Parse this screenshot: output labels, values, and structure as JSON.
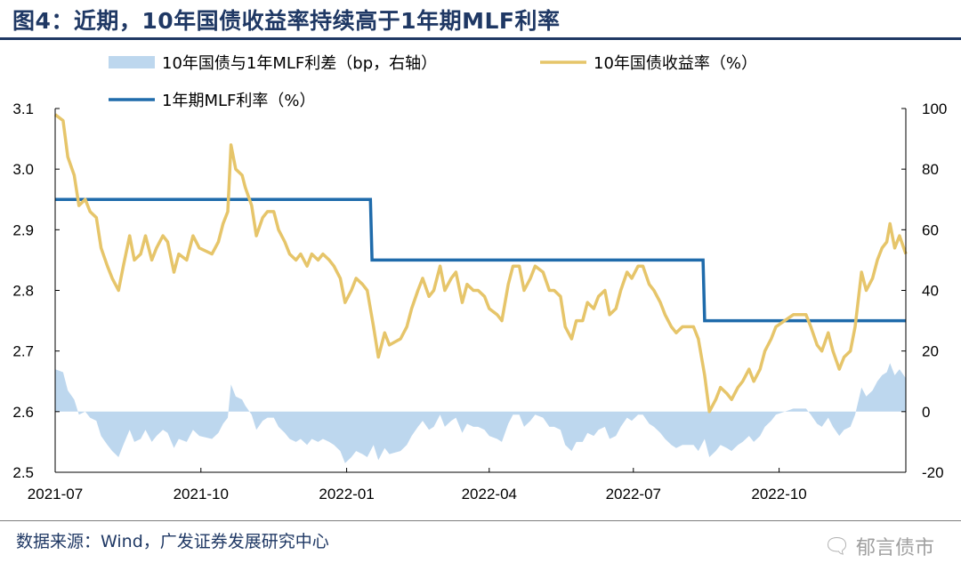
{
  "title": "图4：近期，10年国债收益率持续高于1年期MLF利率",
  "source": "数据来源：Wind，广发证券发展研究中心",
  "watermark": "郁言债市",
  "colors": {
    "spread": "#bdd7ee",
    "yield10y": "#e6c56a",
    "mlf": "#1f6bab",
    "title": "#1f3864"
  },
  "chart_data": {
    "type": "line",
    "legend": [
      {
        "key": "spread",
        "label": "10年国债与1年MLF利差（bp，右轴）"
      },
      {
        "key": "yield10y",
        "label": "10年国债收益率（%）"
      },
      {
        "key": "mlf",
        "label": "1年期MLF利率（%）"
      }
    ],
    "x_range": [
      "2021-07-01",
      "2022-12-20"
    ],
    "x_ticks": [
      "2021-07",
      "2021-10",
      "2022-01",
      "2022-04",
      "2022-07",
      "2022-10"
    ],
    "y_left": {
      "range": [
        2.5,
        3.1
      ],
      "ticks": [
        "2.5",
        "2.6",
        "2.7",
        "2.8",
        "2.9",
        "3.0",
        "3.1"
      ]
    },
    "y_right": {
      "range": [
        -20,
        100
      ],
      "ticks": [
        "-20",
        "0",
        "20",
        "40",
        "60",
        "80",
        "100"
      ]
    },
    "mlf_rate": [
      {
        "from": "2021-07-01",
        "to": "2022-01-16",
        "value": 2.95
      },
      {
        "from": "2022-01-17",
        "to": "2022-08-14",
        "value": 2.85
      },
      {
        "from": "2022-08-15",
        "to": "2022-12-20",
        "value": 2.75
      }
    ],
    "yield10y": [
      [
        "2021-07-01",
        3.09
      ],
      [
        "2021-07-06",
        3.08
      ],
      [
        "2021-07-09",
        3.02
      ],
      [
        "2021-07-13",
        2.99
      ],
      [
        "2021-07-16",
        2.94
      ],
      [
        "2021-07-20",
        2.95
      ],
      [
        "2021-07-23",
        2.93
      ],
      [
        "2021-07-27",
        2.92
      ],
      [
        "2021-07-30",
        2.87
      ],
      [
        "2021-08-03",
        2.84
      ],
      [
        "2021-08-06",
        2.82
      ],
      [
        "2021-08-10",
        2.8
      ],
      [
        "2021-08-13",
        2.84
      ],
      [
        "2021-08-17",
        2.89
      ],
      [
        "2021-08-20",
        2.85
      ],
      [
        "2021-08-24",
        2.86
      ],
      [
        "2021-08-27",
        2.89
      ],
      [
        "2021-08-31",
        2.85
      ],
      [
        "2021-09-03",
        2.87
      ],
      [
        "2021-09-07",
        2.89
      ],
      [
        "2021-09-10",
        2.88
      ],
      [
        "2021-09-14",
        2.83
      ],
      [
        "2021-09-17",
        2.86
      ],
      [
        "2021-09-22",
        2.85
      ],
      [
        "2021-09-26",
        2.89
      ],
      [
        "2021-09-30",
        2.87
      ],
      [
        "2021-10-08",
        2.86
      ],
      [
        "2021-10-12",
        2.88
      ],
      [
        "2021-10-15",
        2.91
      ],
      [
        "2021-10-18",
        2.93
      ],
      [
        "2021-10-20",
        3.04
      ],
      [
        "2021-10-23",
        3.0
      ],
      [
        "2021-10-27",
        2.99
      ],
      [
        "2021-10-29",
        2.97
      ],
      [
        "2021-11-02",
        2.94
      ],
      [
        "2021-11-05",
        2.89
      ],
      [
        "2021-11-09",
        2.92
      ],
      [
        "2021-11-12",
        2.93
      ],
      [
        "2021-11-16",
        2.93
      ],
      [
        "2021-11-19",
        2.9
      ],
      [
        "2021-11-23",
        2.88
      ],
      [
        "2021-11-26",
        2.86
      ],
      [
        "2021-11-30",
        2.85
      ],
      [
        "2021-12-03",
        2.86
      ],
      [
        "2021-12-07",
        2.84
      ],
      [
        "2021-12-10",
        2.86
      ],
      [
        "2021-12-14",
        2.85
      ],
      [
        "2021-12-17",
        2.86
      ],
      [
        "2021-12-21",
        2.85
      ],
      [
        "2021-12-24",
        2.84
      ],
      [
        "2021-12-28",
        2.82
      ],
      [
        "2021-12-31",
        2.78
      ],
      [
        "2022-01-04",
        2.8
      ],
      [
        "2022-01-07",
        2.82
      ],
      [
        "2022-01-11",
        2.81
      ],
      [
        "2022-01-14",
        2.8
      ],
      [
        "2022-01-18",
        2.74
      ],
      [
        "2022-01-21",
        2.69
      ],
      [
        "2022-01-25",
        2.73
      ],
      [
        "2022-01-28",
        2.71
      ],
      [
        "2022-02-04",
        2.72
      ],
      [
        "2022-02-08",
        2.74
      ],
      [
        "2022-02-11",
        2.77
      ],
      [
        "2022-02-15",
        2.8
      ],
      [
        "2022-02-18",
        2.82
      ],
      [
        "2022-02-22",
        2.79
      ],
      [
        "2022-02-25",
        2.8
      ],
      [
        "2022-03-01",
        2.84
      ],
      [
        "2022-03-04",
        2.8
      ],
      [
        "2022-03-08",
        2.82
      ],
      [
        "2022-03-11",
        2.83
      ],
      [
        "2022-03-15",
        2.78
      ],
      [
        "2022-03-18",
        2.81
      ],
      [
        "2022-03-22",
        2.8
      ],
      [
        "2022-03-25",
        2.8
      ],
      [
        "2022-03-29",
        2.79
      ],
      [
        "2022-04-01",
        2.77
      ],
      [
        "2022-04-06",
        2.76
      ],
      [
        "2022-04-09",
        2.75
      ],
      [
        "2022-04-13",
        2.81
      ],
      [
        "2022-04-16",
        2.84
      ],
      [
        "2022-04-20",
        2.84
      ],
      [
        "2022-04-23",
        2.8
      ],
      [
        "2022-04-27",
        2.82
      ],
      [
        "2022-04-30",
        2.84
      ],
      [
        "2022-05-05",
        2.83
      ],
      [
        "2022-05-09",
        2.8
      ],
      [
        "2022-05-12",
        2.8
      ],
      [
        "2022-05-16",
        2.79
      ],
      [
        "2022-05-19",
        2.74
      ],
      [
        "2022-05-23",
        2.72
      ],
      [
        "2022-05-26",
        2.75
      ],
      [
        "2022-05-30",
        2.75
      ],
      [
        "2022-06-02",
        2.78
      ],
      [
        "2022-06-06",
        2.77
      ],
      [
        "2022-06-09",
        2.79
      ],
      [
        "2022-06-13",
        2.8
      ],
      [
        "2022-06-16",
        2.76
      ],
      [
        "2022-06-20",
        2.77
      ],
      [
        "2022-06-23",
        2.8
      ],
      [
        "2022-06-27",
        2.83
      ],
      [
        "2022-06-30",
        2.82
      ],
      [
        "2022-07-04",
        2.84
      ],
      [
        "2022-07-07",
        2.84
      ],
      [
        "2022-07-11",
        2.81
      ],
      [
        "2022-07-14",
        2.8
      ],
      [
        "2022-07-18",
        2.78
      ],
      [
        "2022-07-21",
        2.76
      ],
      [
        "2022-07-25",
        2.74
      ],
      [
        "2022-07-28",
        2.73
      ],
      [
        "2022-08-01",
        2.74
      ],
      [
        "2022-08-04",
        2.74
      ],
      [
        "2022-08-08",
        2.74
      ],
      [
        "2022-08-11",
        2.72
      ],
      [
        "2022-08-15",
        2.66
      ],
      [
        "2022-08-18",
        2.6
      ],
      [
        "2022-08-22",
        2.62
      ],
      [
        "2022-08-25",
        2.64
      ],
      [
        "2022-08-29",
        2.63
      ],
      [
        "2022-09-01",
        2.62
      ],
      [
        "2022-09-05",
        2.64
      ],
      [
        "2022-09-08",
        2.65
      ],
      [
        "2022-09-12",
        2.67
      ],
      [
        "2022-09-15",
        2.65
      ],
      [
        "2022-09-19",
        2.67
      ],
      [
        "2022-09-22",
        2.7
      ],
      [
        "2022-09-26",
        2.72
      ],
      [
        "2022-09-29",
        2.74
      ],
      [
        "2022-10-10",
        2.76
      ],
      [
        "2022-10-14",
        2.76
      ],
      [
        "2022-10-18",
        2.76
      ],
      [
        "2022-10-21",
        2.74
      ],
      [
        "2022-10-25",
        2.71
      ],
      [
        "2022-10-28",
        2.7
      ],
      [
        "2022-11-01",
        2.73
      ],
      [
        "2022-11-04",
        2.7
      ],
      [
        "2022-11-08",
        2.67
      ],
      [
        "2022-11-11",
        2.69
      ],
      [
        "2022-11-15",
        2.7
      ],
      [
        "2022-11-18",
        2.74
      ],
      [
        "2022-11-22",
        2.83
      ],
      [
        "2022-11-25",
        2.8
      ],
      [
        "2022-11-29",
        2.82
      ],
      [
        "2022-12-02",
        2.85
      ],
      [
        "2022-12-05",
        2.87
      ],
      [
        "2022-12-08",
        2.88
      ],
      [
        "2022-12-10",
        2.91
      ],
      [
        "2022-12-13",
        2.87
      ],
      [
        "2022-12-16",
        2.89
      ],
      [
        "2022-12-20",
        2.86
      ]
    ],
    "spread_bp": "computed as (yield10y - mlf_rate) * 100"
  }
}
